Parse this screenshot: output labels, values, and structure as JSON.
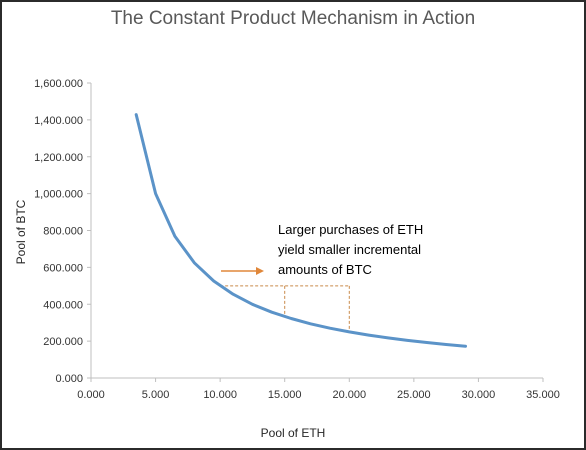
{
  "chart_data": {
    "type": "line",
    "title": "The Constant Product Mechanism in Action",
    "xlabel": "Pool of ETH",
    "ylabel": "Pool of BTC",
    "xlim": [
      0,
      35000
    ],
    "ylim": [
      0,
      1600000
    ],
    "x_ticks": [
      "0.000",
      "5.000",
      "10.000",
      "15.000",
      "20.000",
      "25.000",
      "30.000",
      "35.000"
    ],
    "y_ticks": [
      "0.000",
      "200.000",
      "400.000",
      "600.000",
      "800.000",
      "1,000.000",
      "1,200.000",
      "1,400.000",
      "1,600.000"
    ],
    "grid": false,
    "series": [
      {
        "color": "#5b93c8",
        "points": [
          [
            3500,
            1428571
          ],
          [
            5000,
            1000000
          ],
          [
            6500,
            769231
          ],
          [
            8000,
            625000
          ],
          [
            9500,
            526316
          ],
          [
            11000,
            454545
          ],
          [
            12500,
            400000
          ],
          [
            14000,
            357143
          ],
          [
            15500,
            322581
          ],
          [
            17000,
            294118
          ],
          [
            18500,
            270270
          ],
          [
            20000,
            250000
          ],
          [
            21500,
            232558
          ],
          [
            23000,
            217391
          ],
          [
            24500,
            204082
          ],
          [
            26000,
            192308
          ],
          [
            27500,
            181818
          ],
          [
            29000,
            172414
          ]
        ]
      }
    ],
    "annotation": {
      "lines": [
        "Larger purchases of ETH",
        "yield smaller incremental",
        "amounts of BTC"
      ],
      "arrow_color": "#e0873a",
      "dashed_color": "#c98a4a",
      "marked_x": [
        10000,
        15000,
        20000
      ],
      "marked_y_level": 500000
    }
  }
}
